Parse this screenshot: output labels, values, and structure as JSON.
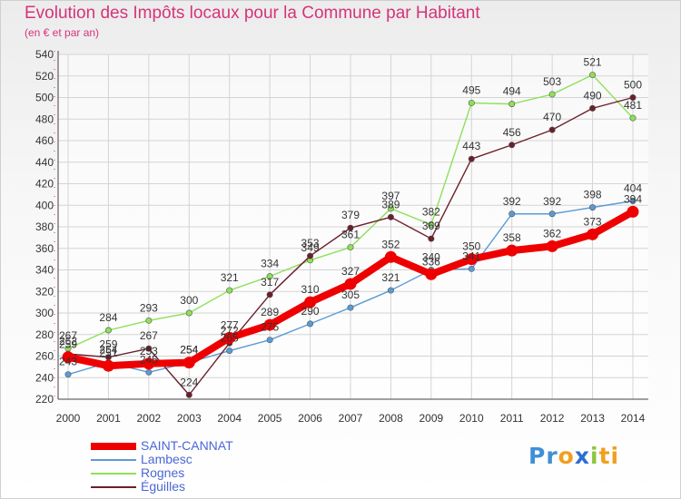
{
  "chart_data": {
    "type": "line",
    "title": "Evolution des Impôts locaux pour la Commune par Habitant",
    "subtitle": "(en € et par an)",
    "xlabel": "",
    "ylabel": "",
    "x": [
      "2000",
      "2001",
      "2002",
      "2003",
      "2004",
      "2005",
      "2006",
      "2007",
      "2008",
      "2009",
      "2010",
      "2011",
      "2012",
      "2013",
      "2014"
    ],
    "ylim": [
      220,
      540
    ],
    "yticks": [
      220,
      240,
      260,
      280,
      300,
      320,
      340,
      360,
      380,
      400,
      420,
      440,
      460,
      480,
      500,
      520,
      540
    ],
    "grid": true,
    "legend_position": "bottom-left",
    "series": [
      {
        "name": "SAINT-CANNAT",
        "color": "#ee0000",
        "values": [
          259,
          251,
          253,
          254,
          277,
          289,
          310,
          327,
          352,
          336,
          350,
          358,
          362,
          373,
          394
        ]
      },
      {
        "name": "Lambesc",
        "color": "#5b9bd5",
        "values": [
          243,
          254,
          245,
          254,
          265,
          275,
          290,
          305,
          321,
          340,
          341,
          392,
          392,
          398,
          404
        ]
      },
      {
        "name": "Rognes",
        "color": "#8ee05a",
        "values": [
          267,
          284,
          293,
          300,
          321,
          334,
          349,
          361,
          397,
          382,
          495,
          494,
          503,
          521,
          481
        ]
      },
      {
        "name": "Éguilles",
        "color": "#6b1f2a",
        "values": [
          262,
          259,
          267,
          224,
          272,
          317,
          353,
          379,
          389,
          369,
          443,
          456,
          470,
          490,
          500
        ]
      }
    ]
  },
  "brand": {
    "parts": [
      "Pr",
      "o",
      "x",
      "i",
      "ti"
    ]
  }
}
